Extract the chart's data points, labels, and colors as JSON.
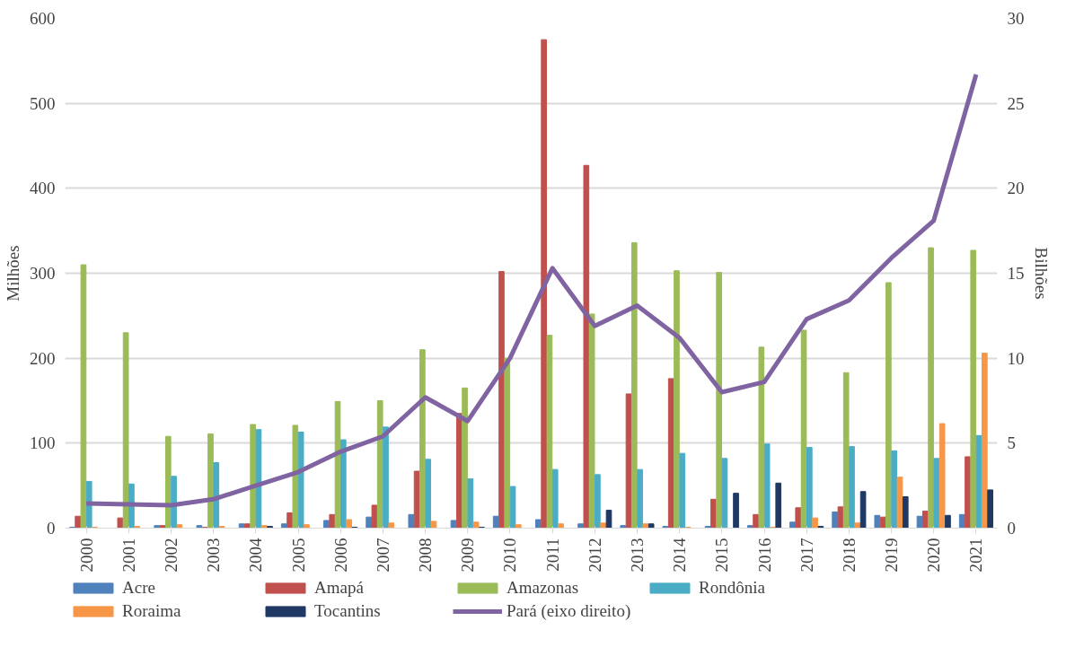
{
  "chart_data": {
    "type": "bar",
    "categories": [
      "2000",
      "2001",
      "2002",
      "2003",
      "2004",
      "2005",
      "2006",
      "2007",
      "2008",
      "2009",
      "2010",
      "2011",
      "2012",
      "2013",
      "2014",
      "2015",
      "2016",
      "2017",
      "2018",
      "2019",
      "2020",
      "2021"
    ],
    "ylabel": "Milhões",
    "y2label": "Bilhões",
    "ylim": [
      0,
      600
    ],
    "yticks": [
      0,
      100,
      200,
      300,
      400,
      500,
      600
    ],
    "y2lim": [
      0,
      30
    ],
    "y2ticks": [
      0,
      5,
      10,
      15,
      20,
      25,
      30
    ],
    "grid": "y",
    "legend": "bottom",
    "series": [
      {
        "name": "Acre",
        "color": "#4f81bd",
        "values": [
          1,
          0,
          3,
          3,
          5,
          5,
          9,
          13,
          16,
          9,
          14,
          10,
          5,
          3,
          2,
          2,
          3,
          7,
          19,
          15,
          14,
          16
        ]
      },
      {
        "name": "Amapá",
        "color": "#c0504d",
        "values": [
          14,
          12,
          3,
          1,
          5,
          18,
          16,
          27,
          67,
          135,
          302,
          575,
          427,
          158,
          176,
          34,
          16,
          24,
          25,
          13,
          20,
          84
        ]
      },
      {
        "name": "Amazonas",
        "color": "#9bbb59",
        "values": [
          310,
          230,
          108,
          111,
          122,
          121,
          149,
          150,
          210,
          165,
          200,
          227,
          252,
          336,
          303,
          301,
          213,
          233,
          183,
          289,
          330,
          327
        ]
      },
      {
        "name": "Rondônia",
        "color": "#4bacc6",
        "values": [
          55,
          52,
          61,
          77,
          116,
          113,
          104,
          119,
          81,
          58,
          49,
          69,
          63,
          69,
          88,
          82,
          99,
          95,
          96,
          91,
          82,
          109
        ]
      },
      {
        "name": "Roraima",
        "color": "#f79646",
        "values": [
          1,
          2,
          4,
          2,
          3,
          4,
          10,
          6,
          8,
          7,
          4,
          5,
          6,
          5,
          1,
          0,
          1,
          12,
          6,
          60,
          123,
          206
        ]
      },
      {
        "name": "Tocantins",
        "color": "#1f3864",
        "values": [
          0,
          0,
          0,
          0,
          2,
          0,
          1,
          0,
          0,
          1,
          0,
          0,
          21,
          5,
          0,
          41,
          53,
          2,
          43,
          37,
          15,
          45
        ]
      },
      {
        "name": "Pará (eixo direito)",
        "color": "#8064a2",
        "type": "line",
        "axis": "y2",
        "values": [
          1.45,
          1.4,
          1.35,
          1.7,
          2.5,
          3.3,
          4.5,
          5.4,
          7.7,
          6.3,
          10.0,
          15.3,
          11.9,
          13.1,
          11.2,
          8.0,
          8.6,
          12.3,
          13.4,
          15.9,
          18.1,
          26.7
        ]
      }
    ]
  }
}
